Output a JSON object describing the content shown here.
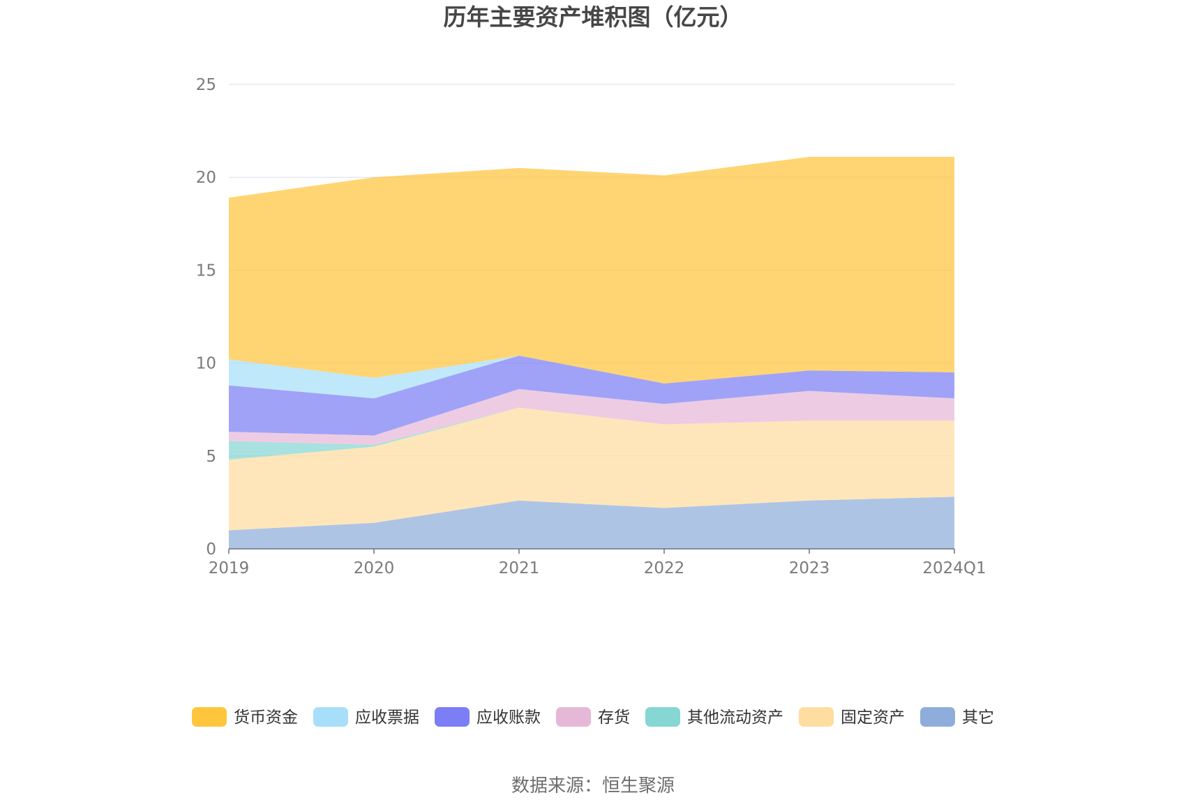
{
  "chart_data": {
    "type": "area",
    "stacked": true,
    "title": "历年主要资产堆积图（亿元）",
    "source": "数据来源：恒生聚源",
    "xlabel": "",
    "ylabel": "",
    "ylim": [
      0,
      25
    ],
    "yticks": [
      "0",
      "5",
      "10",
      "15",
      "20",
      "25"
    ],
    "categories": [
      "2019",
      "2020",
      "2021",
      "2022",
      "2023",
      "2024Q1"
    ],
    "legend_position": "bottom",
    "series": [
      {
        "name": "货币资金",
        "color": "#FFC53D",
        "values": [
          8.7,
          10.8,
          10.1,
          11.2,
          11.5,
          11.6
        ]
      },
      {
        "name": "应收票据",
        "color": "#A7DFFA",
        "values": [
          1.4,
          1.1,
          0.0,
          0.0,
          0.0,
          0.0
        ]
      },
      {
        "name": "应收账款",
        "color": "#7B7EF5",
        "values": [
          2.5,
          2.0,
          1.8,
          1.1,
          1.1,
          1.4
        ]
      },
      {
        "name": "存货",
        "color": "#E6B8D8",
        "values": [
          0.5,
          0.5,
          1.0,
          1.1,
          1.6,
          1.2
        ]
      },
      {
        "name": "其他流动资产",
        "color": "#86D6D4",
        "values": [
          1.0,
          0.1,
          0.0,
          0.0,
          0.0,
          0.0
        ]
      },
      {
        "name": "固定资产",
        "color": "#FFDDA0",
        "values": [
          3.8,
          4.1,
          5.0,
          4.5,
          4.3,
          4.1
        ]
      },
      {
        "name": "其它",
        "color": "#8EADDB",
        "values": [
          1.0,
          1.4,
          2.6,
          2.2,
          2.6,
          2.8
        ]
      }
    ]
  }
}
